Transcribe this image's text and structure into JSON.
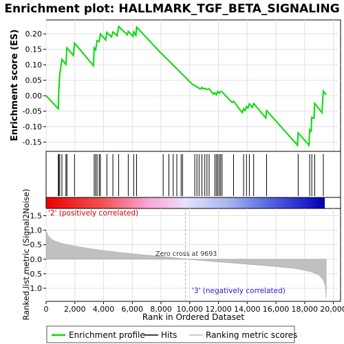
{
  "chart_data": {
    "type": "line",
    "title": "Enrichment plot: HALLMARK_TGF_BETA_SIGNALING",
    "ylabel_top": "Enrichment score (ES)",
    "ylabel_bottom": "Ranked list metric (Signal2Noise)",
    "xlabel": "Rank in Ordered Dataset",
    "xlim": [
      0,
      20500
    ],
    "ylim_top": [
      -0.18,
      0.245
    ],
    "ylim_bottom": [
      -1.45,
      1.75
    ],
    "x_ticks": [
      0,
      2000,
      4000,
      6000,
      8000,
      10000,
      12000,
      14000,
      16000,
      18000,
      20000
    ],
    "x_tick_labels": [
      "0",
      "2,000",
      "4,000",
      "6,000",
      "8,000",
      "10,000",
      "12,000",
      "14,000",
      "16,000",
      "18,000",
      "20,000"
    ],
    "y_ticks_top": [
      -0.15,
      -0.1,
      -0.05,
      0.0,
      0.05,
      0.1,
      0.15,
      0.2
    ],
    "y_tick_labels_top": [
      "-0.15",
      "-0.10",
      "-0.05",
      "0.00",
      "0.05",
      "0.10",
      "0.15",
      "0.20"
    ],
    "y_ticks_bottom": [
      -1.0,
      -0.5,
      0.0,
      0.5,
      1.0,
      1.5
    ],
    "y_tick_labels_bottom": [
      "-1.0",
      "-0.5",
      "0.0",
      "0.5",
      "1.0",
      "1.5"
    ],
    "series": [
      {
        "name": "Enrichment profile",
        "color": "#00dd00",
        "points": [
          [
            0,
            0.0
          ],
          [
            850,
            -0.042
          ],
          [
            880,
            0.015
          ],
          [
            950,
            0.068
          ],
          [
            1100,
            0.118
          ],
          [
            1380,
            0.101
          ],
          [
            1450,
            0.155
          ],
          [
            1900,
            0.13
          ],
          [
            1980,
            0.17
          ],
          [
            3300,
            0.097
          ],
          [
            3350,
            0.155
          ],
          [
            3450,
            0.148
          ],
          [
            3550,
            0.178
          ],
          [
            3700,
            0.175
          ],
          [
            3780,
            0.2
          ],
          [
            4150,
            0.18
          ],
          [
            4230,
            0.205
          ],
          [
            4550,
            0.19
          ],
          [
            4650,
            0.206
          ],
          [
            4950,
            0.194
          ],
          [
            5050,
            0.224
          ],
          [
            5650,
            0.197
          ],
          [
            5720,
            0.208
          ],
          [
            6050,
            0.192
          ],
          [
            6100,
            0.207
          ],
          [
            6250,
            0.195
          ],
          [
            6300,
            0.222
          ],
          [
            8050,
            0.135
          ],
          [
            8150,
            0.131
          ],
          [
            10200,
            0.036
          ],
          [
            10350,
            0.033
          ],
          [
            10500,
            0.028
          ],
          [
            10650,
            0.024
          ],
          [
            10750,
            0.022
          ],
          [
            10850,
            0.027
          ],
          [
            10950,
            0.022
          ],
          [
            11050,
            0.024
          ],
          [
            11200,
            0.02
          ],
          [
            11350,
            0.022
          ],
          [
            11650,
            0.005
          ],
          [
            11750,
            0.01
          ],
          [
            11850,
            0.003
          ],
          [
            11950,
            0.014
          ],
          [
            12050,
            0.008
          ],
          [
            12150,
            0.014
          ],
          [
            12250,
            0.012
          ],
          [
            12950,
            -0.022
          ],
          [
            13050,
            -0.018
          ],
          [
            13650,
            -0.055
          ],
          [
            13750,
            -0.042
          ],
          [
            13850,
            -0.048
          ],
          [
            13950,
            -0.035
          ],
          [
            14050,
            -0.04
          ],
          [
            14150,
            -0.026
          ],
          [
            14350,
            -0.038
          ],
          [
            14450,
            -0.025
          ],
          [
            15300,
            -0.072
          ],
          [
            15350,
            -0.048
          ],
          [
            17500,
            -0.16
          ],
          [
            17550,
            -0.12
          ],
          [
            18300,
            -0.16
          ],
          [
            18350,
            -0.11
          ],
          [
            18450,
            -0.115
          ],
          [
            18500,
            -0.07
          ],
          [
            18650,
            -0.073
          ],
          [
            18700,
            -0.025
          ],
          [
            19200,
            -0.055
          ],
          [
            19300,
            0.015
          ],
          [
            19500,
            0.003
          ]
        ]
      }
    ],
    "hits": [
      850,
      880,
      950,
      1100,
      1380,
      1450,
      1980,
      3350,
      3450,
      3550,
      3700,
      3780,
      4230,
      4650,
      5050,
      5720,
      6100,
      6300,
      8150,
      8550,
      8850,
      9100,
      9400,
      9500,
      10350,
      10500,
      10650,
      10850,
      11050,
      11200,
      11350,
      11750,
      11850,
      11950,
      12050,
      12150,
      12250,
      13050,
      13750,
      13950,
      14150,
      14450,
      15350,
      17550,
      18350,
      18500,
      18700,
      19300
    ],
    "metric_curve": [
      [
        0,
        0.98
      ],
      [
        100,
        0.85
      ],
      [
        300,
        0.72
      ],
      [
        600,
        0.63
      ],
      [
        1000,
        0.56
      ],
      [
        1500,
        0.5
      ],
      [
        2000,
        0.45
      ],
      [
        3000,
        0.37
      ],
      [
        4000,
        0.3
      ],
      [
        5000,
        0.24
      ],
      [
        6000,
        0.19
      ],
      [
        7000,
        0.14
      ],
      [
        8000,
        0.1
      ],
      [
        9000,
        0.05
      ],
      [
        9693,
        0.0
      ],
      [
        11000,
        -0.05
      ],
      [
        12000,
        -0.09
      ],
      [
        13000,
        -0.13
      ],
      [
        14000,
        -0.17
      ],
      [
        15000,
        -0.21
      ],
      [
        16000,
        -0.25
      ],
      [
        17000,
        -0.3
      ],
      [
        17500,
        -0.33
      ],
      [
        18000,
        -0.38
      ],
      [
        18500,
        -0.44
      ],
      [
        19000,
        -0.55
      ],
      [
        19300,
        -0.7
      ],
      [
        19450,
        -0.95
      ],
      [
        19500,
        -1.33
      ]
    ],
    "zero_cross": 9693,
    "annotations": {
      "positive": "'2' (positively correlated)",
      "negative": "'3' (negatively correlated)",
      "zero": "Zero cross at 9693"
    },
    "legend": [
      {
        "label": "Enrichment profile",
        "color": "#00dd00"
      },
      {
        "label": "Hits",
        "color": "#000000"
      },
      {
        "label": "Ranking metric scores",
        "color": "#bbbbbb"
      }
    ],
    "legend_placement": "bottom",
    "grid": true,
    "colors": {
      "profile": "#00dd00",
      "metric_fill": "#c0c0c0",
      "red": "#ee0000",
      "blue": "#1111cc"
    }
  }
}
